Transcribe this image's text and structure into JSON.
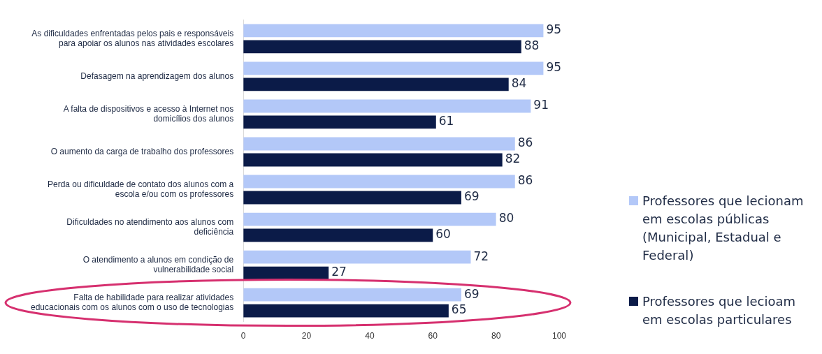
{
  "chart_data": {
    "type": "bar",
    "orientation": "horizontal",
    "categories": [
      "As dificuldades enfrentadas pelos pais e responsáveis para apoiar os alunos nas atividades escolares",
      "Defasagem na aprendizagem dos alunos",
      "A falta de dispositivos e acesso à Internet nos domicílios dos alunos",
      "O aumento da carga de trabalho dos professores",
      "Perda ou dificuldade de contato dos alunos com a escola e/ou com os professores",
      "Dificuldades no atendimento aos alunos com deficiência",
      "O atendimento a alunos em condição de vulnerabilidade social",
      "Falta de habilidade para realizar atividades educacionais com os alunos com o uso de tecnologias"
    ],
    "series": [
      {
        "name": "Professores que lecionam em escolas públicas (Municipal, Estadual e Federal)",
        "color": "#b3c8f8",
        "values": [
          95,
          95,
          91,
          86,
          86,
          80,
          72,
          69
        ]
      },
      {
        "name": "Professores que lecioam em escolas particulares",
        "color": "#0b1b48",
        "values": [
          88,
          84,
          61,
          82,
          69,
          60,
          27,
          65
        ]
      }
    ],
    "xlim": [
      0,
      100
    ],
    "xticks": [
      0,
      20,
      40,
      60,
      80,
      100
    ],
    "grid": false,
    "legend": "right",
    "data_labels": true
  }
}
